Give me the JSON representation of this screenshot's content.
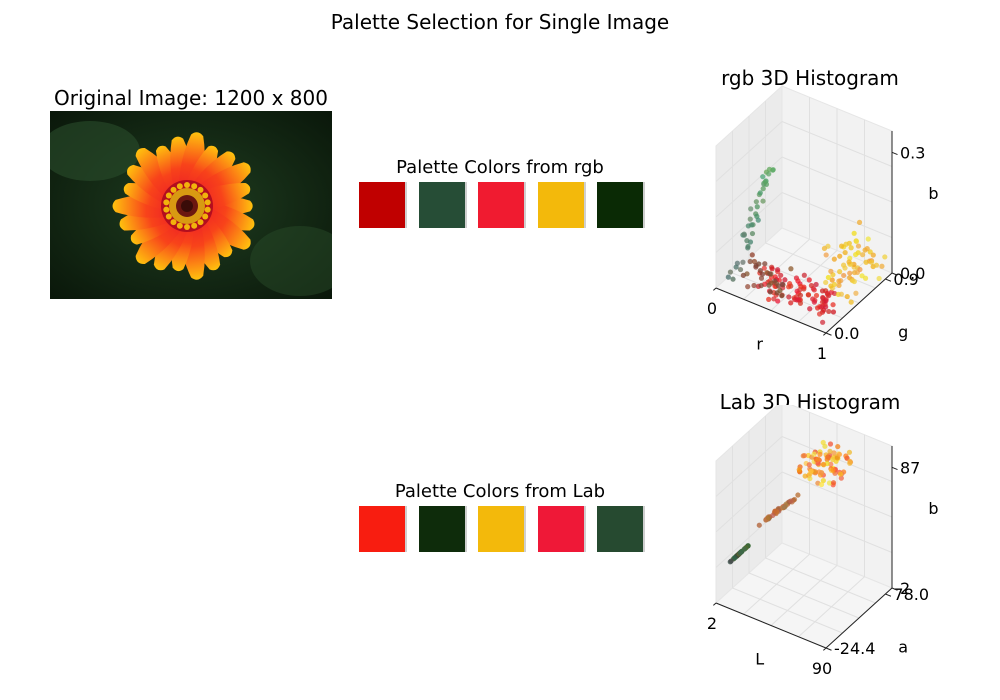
{
  "title": "Palette Selection for Single Image",
  "image_panel": {
    "title": "Original Image: 1200 x 800"
  },
  "chart_data": [
    {
      "type": "palette",
      "title": "Palette Colors from rgb",
      "colors": [
        "#c00000",
        "#264d36",
        "#f01b30",
        "#f3b90b",
        "#0a2a05"
      ]
    },
    {
      "type": "palette",
      "title": "Palette Colors from Lab",
      "colors": [
        "#f81d10",
        "#0e2c0b",
        "#f3b90b",
        "#ef1837",
        "#264a30"
      ]
    },
    {
      "type": "scatter3d",
      "title": "rgb 3D Histogram",
      "xlabel": "r",
      "ylabel": "g",
      "zlabel": "b",
      "xticks": [
        "0",
        "1"
      ],
      "yticks": [
        "0.0",
        "0.9"
      ],
      "zticks": [
        "0.0",
        "0.3"
      ],
      "xlim": [
        0,
        1
      ],
      "ylim": [
        0,
        0.9
      ],
      "zlim": [
        0,
        0.35
      ]
    },
    {
      "type": "scatter3d",
      "title": "Lab 3D Histogram",
      "xlabel": "L",
      "ylabel": "a",
      "zlabel": "b",
      "xticks": [
        "2",
        "90"
      ],
      "yticks": [
        "-24.4",
        "78.0"
      ],
      "zticks": [
        "2",
        "87"
      ],
      "xlim": [
        2,
        90
      ],
      "ylim": [
        -24.4,
        78.0
      ],
      "zlim": [
        2,
        87
      ]
    }
  ]
}
